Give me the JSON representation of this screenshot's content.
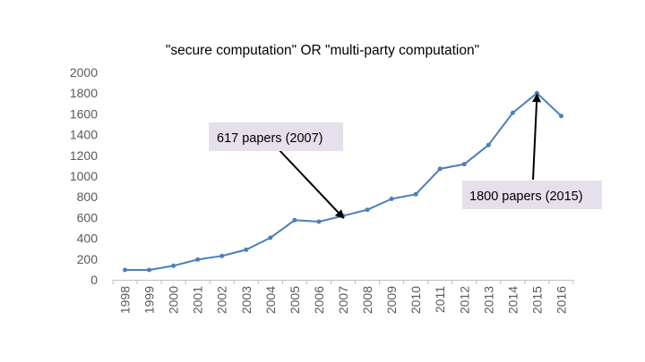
{
  "chart_data": {
    "type": "line",
    "title": "\"secure computation\" OR \"multi-party computation\"",
    "xlabel": "",
    "ylabel": "",
    "ylim": [
      0,
      2000
    ],
    "yticks": [
      0,
      200,
      400,
      600,
      800,
      1000,
      1200,
      1400,
      1600,
      1800,
      2000
    ],
    "grid": false,
    "legend": "none",
    "categories": [
      "1998",
      "1999",
      "2000",
      "2001",
      "2002",
      "2003",
      "2004",
      "2005",
      "2006",
      "2007",
      "2008",
      "2009",
      "2010",
      "2011",
      "2012",
      "2013",
      "2014",
      "2015",
      "2016"
    ],
    "series": [
      {
        "color": "#4a7ebb",
        "values": [
          95,
          95,
          135,
          195,
          230,
          290,
          405,
          575,
          560,
          617,
          675,
          780,
          825,
          1070,
          1115,
          1300,
          1610,
          1800,
          1580
        ]
      }
    ],
    "annotations": [
      {
        "text": "617 papers (2007)",
        "target_category": "2007",
        "target_value": 617,
        "box_color": "#e5e0ec"
      },
      {
        "text": "1800 papers (2015)",
        "target_category": "2015",
        "target_value": 1800,
        "box_color": "#e5e0ec"
      }
    ]
  }
}
